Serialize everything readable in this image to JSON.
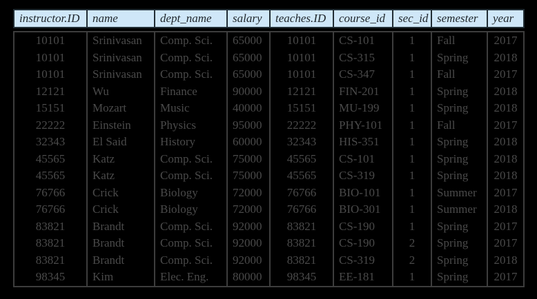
{
  "chart_data": {
    "type": "table",
    "title": "",
    "columns": [
      {
        "key": "instructor-id",
        "label": "instructor.ID",
        "align": "center"
      },
      {
        "key": "name",
        "label": "name",
        "align": "left"
      },
      {
        "key": "dept-name",
        "label": "dept_name",
        "align": "left"
      },
      {
        "key": "salary",
        "label": "salary",
        "align": "left"
      },
      {
        "key": "teaches-id",
        "label": "teaches.ID",
        "align": "center"
      },
      {
        "key": "course-id",
        "label": "course_id",
        "align": "left"
      },
      {
        "key": "sec-id",
        "label": "sec_id",
        "align": "center"
      },
      {
        "key": "semester",
        "label": "semester",
        "align": "left"
      },
      {
        "key": "year",
        "label": "year",
        "align": "center"
      }
    ],
    "rows": [
      [
        "10101",
        "Srinivasan",
        "Comp. Sci.",
        "65000",
        "10101",
        "CS-101",
        "1",
        "Fall",
        "2017"
      ],
      [
        "10101",
        "Srinivasan",
        "Comp. Sci.",
        "65000",
        "10101",
        "CS-315",
        "1",
        "Spring",
        "2018"
      ],
      [
        "10101",
        "Srinivasan",
        "Comp. Sci.",
        "65000",
        "10101",
        "CS-347",
        "1",
        "Fall",
        "2017"
      ],
      [
        "12121",
        "Wu",
        "Finance",
        "90000",
        "12121",
        "FIN-201",
        "1",
        "Spring",
        "2018"
      ],
      [
        "15151",
        "Mozart",
        "Music",
        "40000",
        "15151",
        "MU-199",
        "1",
        "Spring",
        "2018"
      ],
      [
        "22222",
        "Einstein",
        "Physics",
        "95000",
        "22222",
        "PHY-101",
        "1",
        "Fall",
        "2017"
      ],
      [
        "32343",
        "El Said",
        "History",
        "60000",
        "32343",
        "HIS-351",
        "1",
        "Spring",
        "2018"
      ],
      [
        "45565",
        "Katz",
        "Comp. Sci.",
        "75000",
        "45565",
        "CS-101",
        "1",
        "Spring",
        "2018"
      ],
      [
        "45565",
        "Katz",
        "Comp. Sci.",
        "75000",
        "45565",
        "CS-319",
        "1",
        "Spring",
        "2018"
      ],
      [
        "76766",
        "Crick",
        "Biology",
        "72000",
        "76766",
        "BIO-101",
        "1",
        "Summer",
        "2017"
      ],
      [
        "76766",
        "Crick",
        "Biology",
        "72000",
        "76766",
        "BIO-301",
        "1",
        "Summer",
        "2018"
      ],
      [
        "83821",
        "Brandt",
        "Comp. Sci.",
        "92000",
        "83821",
        "CS-190",
        "1",
        "Spring",
        "2017"
      ],
      [
        "83821",
        "Brandt",
        "Comp. Sci.",
        "92000",
        "83821",
        "CS-190",
        "2",
        "Spring",
        "2017"
      ],
      [
        "83821",
        "Brandt",
        "Comp. Sci.",
        "92000",
        "83821",
        "CS-319",
        "2",
        "Spring",
        "2018"
      ],
      [
        "98345",
        "Kim",
        "Elec. Eng.",
        "80000",
        "98345",
        "EE-181",
        "1",
        "Spring",
        "2017"
      ]
    ],
    "layout": {
      "legend": "none",
      "grid": "vertical-separators-only",
      "header_style": "italic"
    }
  },
  "colors": {
    "background": "#000000",
    "header_fill": "#cfe7f8",
    "header_text": "#1f262b",
    "header_border": "#222e35",
    "body_text": "#4a4a4a",
    "body_border": "#3d3d3d"
  }
}
